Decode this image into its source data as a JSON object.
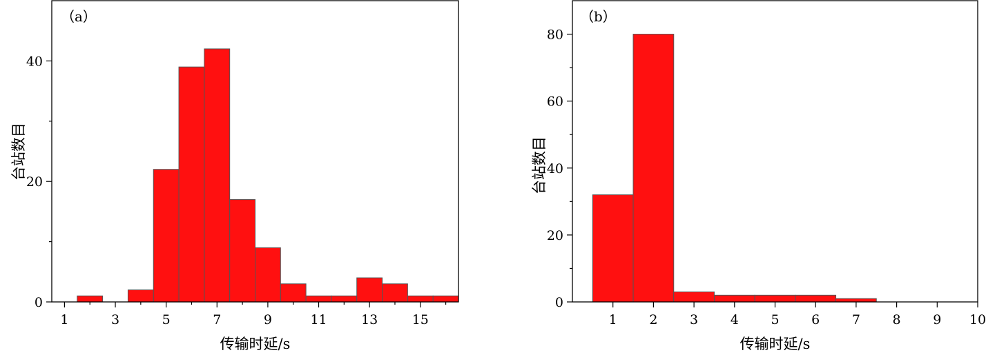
{
  "colors": {
    "bar_fill": "#ff1010",
    "bar_edge": "#555555",
    "axis": "#000000"
  },
  "chart_data": [
    {
      "type": "bar",
      "panel_label": "（a）",
      "xlabel": "传输时延/s",
      "ylabel": "台站数目",
      "xlim": [
        0.5,
        16.5
      ],
      "ylim": [
        0,
        50
      ],
      "x_major_ticks": [
        1,
        3,
        5,
        7,
        9,
        11,
        13,
        15
      ],
      "x_tick_labels": [
        "1",
        "3",
        "5",
        "7",
        "9",
        "11",
        "13",
        "15"
      ],
      "x_minor_ticks": [
        2,
        4,
        6,
        8,
        10,
        12,
        14,
        16
      ],
      "y_major_ticks": [
        0,
        20,
        40
      ],
      "y_tick_labels": [
        "0",
        "20",
        "40"
      ],
      "y_minor_ticks": [
        10,
        30
      ],
      "bin_width": 1,
      "bins": [
        {
          "x": 2,
          "value": 1
        },
        {
          "x": 4,
          "value": 2
        },
        {
          "x": 5,
          "value": 22
        },
        {
          "x": 6,
          "value": 39
        },
        {
          "x": 7,
          "value": 42
        },
        {
          "x": 8,
          "value": 17
        },
        {
          "x": 9,
          "value": 9
        },
        {
          "x": 10,
          "value": 3
        },
        {
          "x": 11,
          "value": 1
        },
        {
          "x": 12,
          "value": 1
        },
        {
          "x": 13,
          "value": 4
        },
        {
          "x": 14,
          "value": 3
        },
        {
          "x": 15,
          "value": 1
        },
        {
          "x": 16,
          "value": 1
        }
      ],
      "grid": false,
      "legend": "none"
    },
    {
      "type": "bar",
      "panel_label": "（b）",
      "xlabel": "传输时延/s",
      "ylabel": "台站数目",
      "xlim": [
        0,
        10
      ],
      "ylim": [
        0,
        90
      ],
      "x_major_ticks": [
        1,
        2,
        3,
        4,
        5,
        6,
        7,
        8,
        9,
        10
      ],
      "x_tick_labels": [
        "1",
        "2",
        "3",
        "4",
        "5",
        "6",
        "7",
        "8",
        "9",
        "10"
      ],
      "x_minor_ticks": [],
      "y_major_ticks": [
        0,
        20,
        40,
        60,
        80
      ],
      "y_tick_labels": [
        "0",
        "20",
        "40",
        "60",
        "80"
      ],
      "y_minor_ticks": [
        10,
        30,
        50,
        70
      ],
      "bin_width": 1,
      "bins": [
        {
          "x": 1,
          "value": 32
        },
        {
          "x": 2,
          "value": 80
        },
        {
          "x": 3,
          "value": 3
        },
        {
          "x": 4,
          "value": 2
        },
        {
          "x": 5,
          "value": 2
        },
        {
          "x": 6,
          "value": 2
        },
        {
          "x": 7,
          "value": 1
        }
      ],
      "grid": false,
      "legend": "none"
    }
  ]
}
